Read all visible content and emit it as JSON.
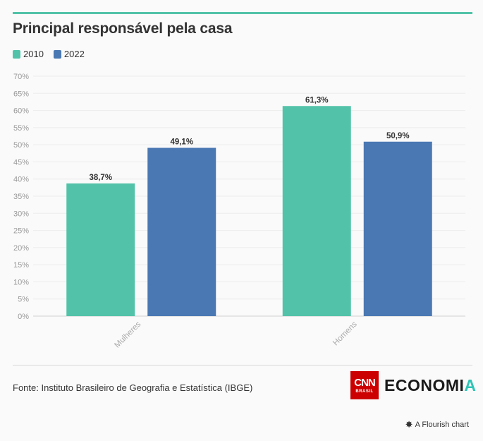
{
  "title": "Principal responsável pela casa",
  "legend": [
    {
      "label": "2010",
      "color": "#52c3a8"
    },
    {
      "label": "2022",
      "color": "#4a78b3"
    }
  ],
  "chart_data": {
    "type": "bar",
    "categories": [
      "Mulheres",
      "Homens"
    ],
    "series": [
      {
        "name": "2010",
        "values": [
          38.7,
          61.3
        ],
        "labels": [
          "38,7%",
          "61,3%"
        ],
        "color": "#52c3a8"
      },
      {
        "name": "2022",
        "values": [
          49.1,
          50.9
        ],
        "labels": [
          "49,1%",
          "50,9%"
        ],
        "color": "#4a78b3"
      }
    ],
    "ylim": [
      0,
      70
    ],
    "yticks": [
      0,
      5,
      10,
      15,
      20,
      25,
      30,
      35,
      40,
      45,
      50,
      55,
      60,
      65,
      70
    ],
    "ytick_labels": [
      "0%",
      "5%",
      "10%",
      "15%",
      "20%",
      "25%",
      "30%",
      "35%",
      "40%",
      "45%",
      "50%",
      "55%",
      "60%",
      "65%",
      "70%"
    ],
    "grid": true,
    "legend_position": "top-left"
  },
  "footer": {
    "source": "Fonte: Instituto Brasileiro de Geografia e Estatística (IBGE)",
    "logo_cnn": "CNN",
    "logo_cnn_sub": "BRASIL",
    "logo_economia_main": "ECONOMI",
    "logo_economia_accent": "A",
    "flourish_credit": "A Flourish chart"
  },
  "colors": {
    "accent_rule": "#52c3a8",
    "series_2010": "#52c3a8",
    "series_2022": "#4a78b3",
    "cnn_red": "#cc0000"
  }
}
